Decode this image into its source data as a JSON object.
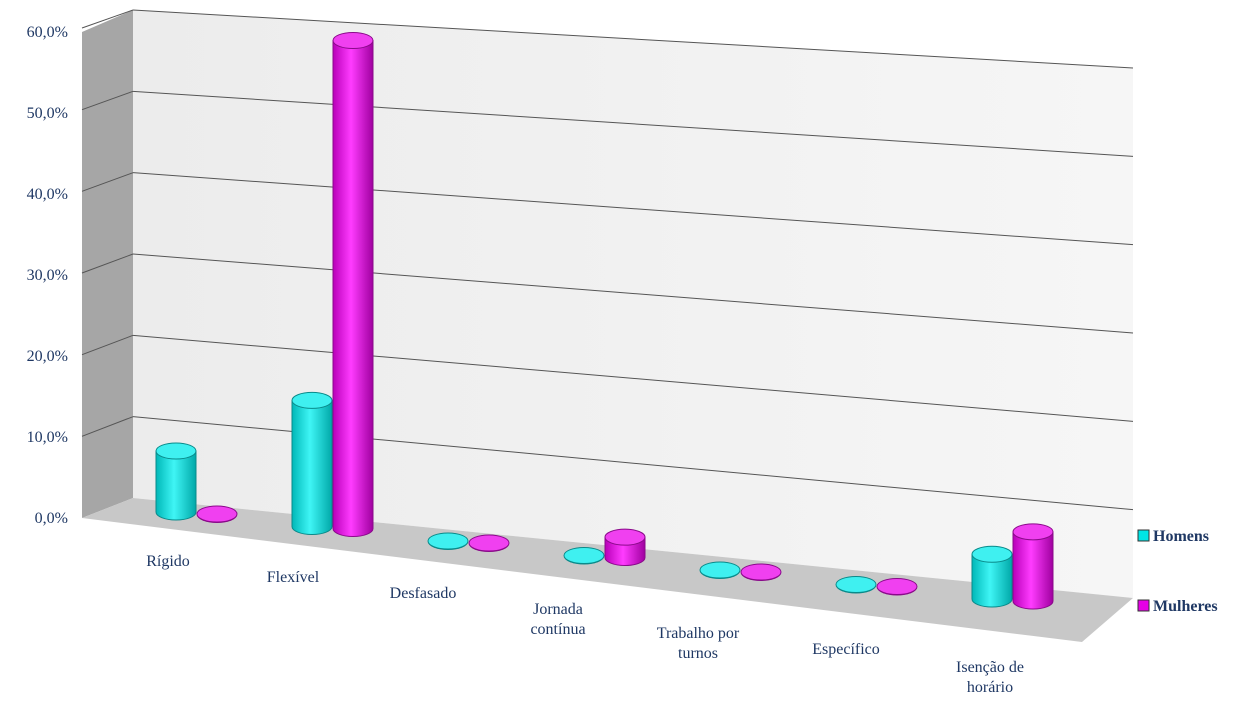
{
  "chart_data": {
    "type": "bar",
    "style": "3d-cylinder",
    "categories": [
      [
        "Rígido"
      ],
      [
        "Flexível"
      ],
      [
        "Desfasado"
      ],
      [
        "Jornada",
        "contínua"
      ],
      [
        "Trabalho por",
        "turnos"
      ],
      [
        "Específico"
      ],
      [
        "Isenção de",
        "horário"
      ]
    ],
    "series": [
      {
        "name": "Homens",
        "color": "#00e5e5",
        "values": [
          7.5,
          15.5,
          0,
          0,
          0,
          0,
          5.5
        ]
      },
      {
        "name": "Mulheres",
        "color": "#e600e6",
        "values": [
          0,
          60,
          0,
          2.5,
          0,
          0,
          8.5
        ]
      }
    ],
    "yticks": [
      "0,0%",
      "10,0%",
      "20,0%",
      "30,0%",
      "40,0%",
      "50,0%",
      "60,0%"
    ],
    "ylim": [
      0,
      60
    ],
    "grid": true,
    "legend_position": "right"
  }
}
